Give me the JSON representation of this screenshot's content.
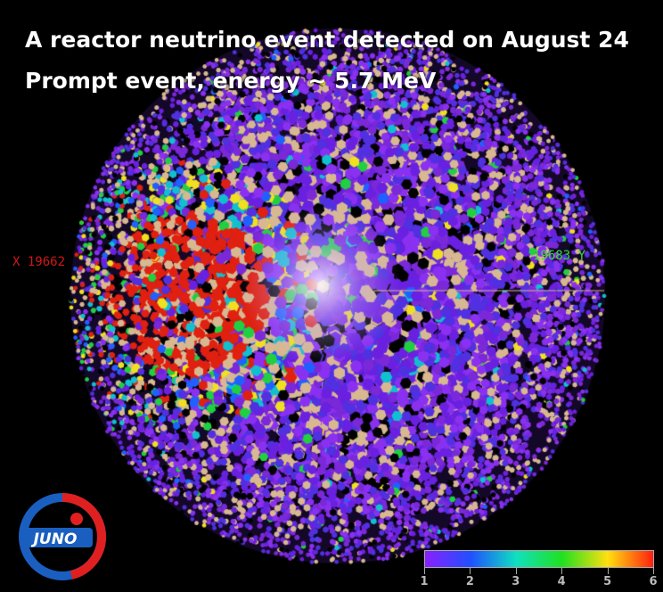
{
  "title_line1": "A reactor neutrino event detected on August 24",
  "title_line2": "Prompt event, energy ~ 5.7 MeV",
  "axis_labels": {
    "x": "X 19662",
    "y": "19683 Y"
  },
  "colorbar": {
    "ticks": [
      "1",
      "2",
      "3",
      "4",
      "5",
      "6"
    ],
    "colors": [
      "#8a20ff",
      "#2050ff",
      "#10e0c0",
      "#20e020",
      "#ffe010",
      "#ff2010"
    ]
  },
  "logo": {
    "text": "JUNO",
    "colors": {
      "blue": "#1a5fc0",
      "red": "#e02020"
    }
  },
  "colors": {
    "background": "#000000",
    "pmt_base": "#7a28d8",
    "cluster": "#c81808",
    "frame": "#d8b890"
  }
}
